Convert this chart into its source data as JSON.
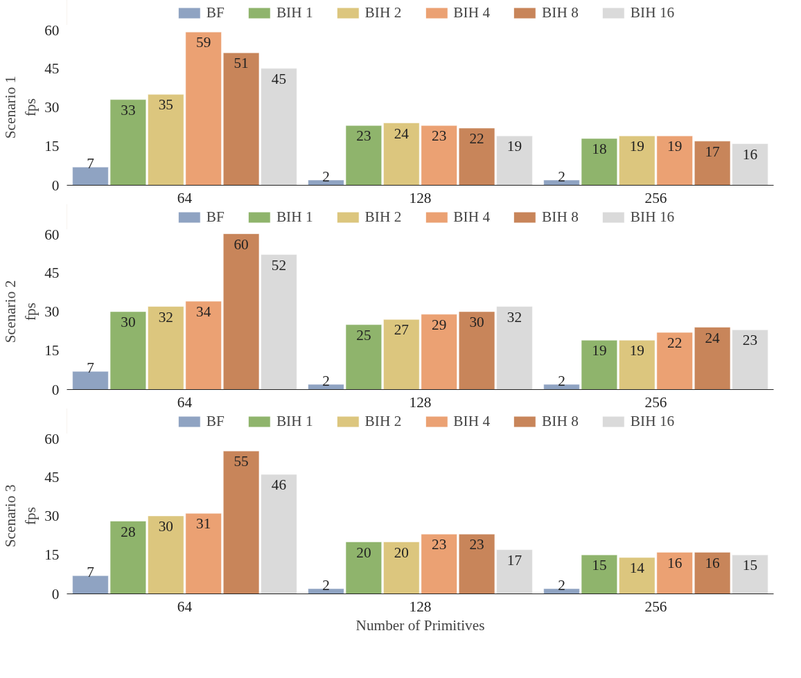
{
  "chart_data": [
    {
      "type": "bar",
      "ylabel": "Scenario 1\nfps",
      "categories": [
        "64",
        "128",
        "256"
      ],
      "ylim": [
        0,
        60
      ],
      "yticks": [
        0,
        15,
        30,
        45,
        60
      ],
      "grid": false,
      "legend": "top",
      "data_labels": true,
      "series": [
        {
          "name": "BF",
          "color": "#8fa3c2",
          "values": [
            7,
            2,
            2
          ]
        },
        {
          "name": "BIH 1",
          "color": "#8fb46c",
          "values": [
            33,
            23,
            18
          ]
        },
        {
          "name": "BIH 2",
          "color": "#dcc67e",
          "values": [
            35,
            24,
            19
          ]
        },
        {
          "name": "BIH 4",
          "color": "#eba173",
          "values": [
            59,
            23,
            19
          ]
        },
        {
          "name": "BIH 8",
          "color": "#c8855a",
          "values": [
            51,
            22,
            17
          ]
        },
        {
          "name": "BIH 16",
          "color": "#dadada",
          "values": [
            45,
            19,
            16
          ]
        }
      ]
    },
    {
      "type": "bar",
      "ylabel": "Scenario 2\nfps",
      "categories": [
        "64",
        "128",
        "256"
      ],
      "ylim": [
        0,
        60
      ],
      "yticks": [
        0,
        15,
        30,
        45,
        60
      ],
      "grid": false,
      "legend": "top",
      "data_labels": true,
      "series": [
        {
          "name": "BF",
          "color": "#8fa3c2",
          "values": [
            7,
            2,
            2
          ]
        },
        {
          "name": "BIH 1",
          "color": "#8fb46c",
          "values": [
            30,
            25,
            19
          ]
        },
        {
          "name": "BIH 2",
          "color": "#dcc67e",
          "values": [
            32,
            27,
            19
          ]
        },
        {
          "name": "BIH 4",
          "color": "#eba173",
          "values": [
            34,
            29,
            22
          ]
        },
        {
          "name": "BIH 8",
          "color": "#c8855a",
          "values": [
            60,
            30,
            24
          ]
        },
        {
          "name": "BIH 16",
          "color": "#dadada",
          "values": [
            52,
            32,
            23
          ]
        }
      ]
    },
    {
      "type": "bar",
      "ylabel": "Scenario 3\nfps",
      "xlabel": "Number of Primitives",
      "categories": [
        "64",
        "128",
        "256"
      ],
      "ylim": [
        0,
        60
      ],
      "yticks": [
        0,
        15,
        30,
        45,
        60
      ],
      "grid": false,
      "legend": "top",
      "data_labels": true,
      "series": [
        {
          "name": "BF",
          "color": "#8fa3c2",
          "values": [
            7,
            2,
            2
          ]
        },
        {
          "name": "BIH 1",
          "color": "#8fb46c",
          "values": [
            28,
            20,
            15
          ]
        },
        {
          "name": "BIH 2",
          "color": "#dcc67e",
          "values": [
            30,
            20,
            14
          ]
        },
        {
          "name": "BIH 4",
          "color": "#eba173",
          "values": [
            31,
            23,
            16
          ]
        },
        {
          "name": "BIH 8",
          "color": "#c8855a",
          "values": [
            55,
            23,
            16
          ]
        },
        {
          "name": "BIH 16",
          "color": "#dadada",
          "values": [
            46,
            17,
            15
          ]
        }
      ]
    }
  ]
}
